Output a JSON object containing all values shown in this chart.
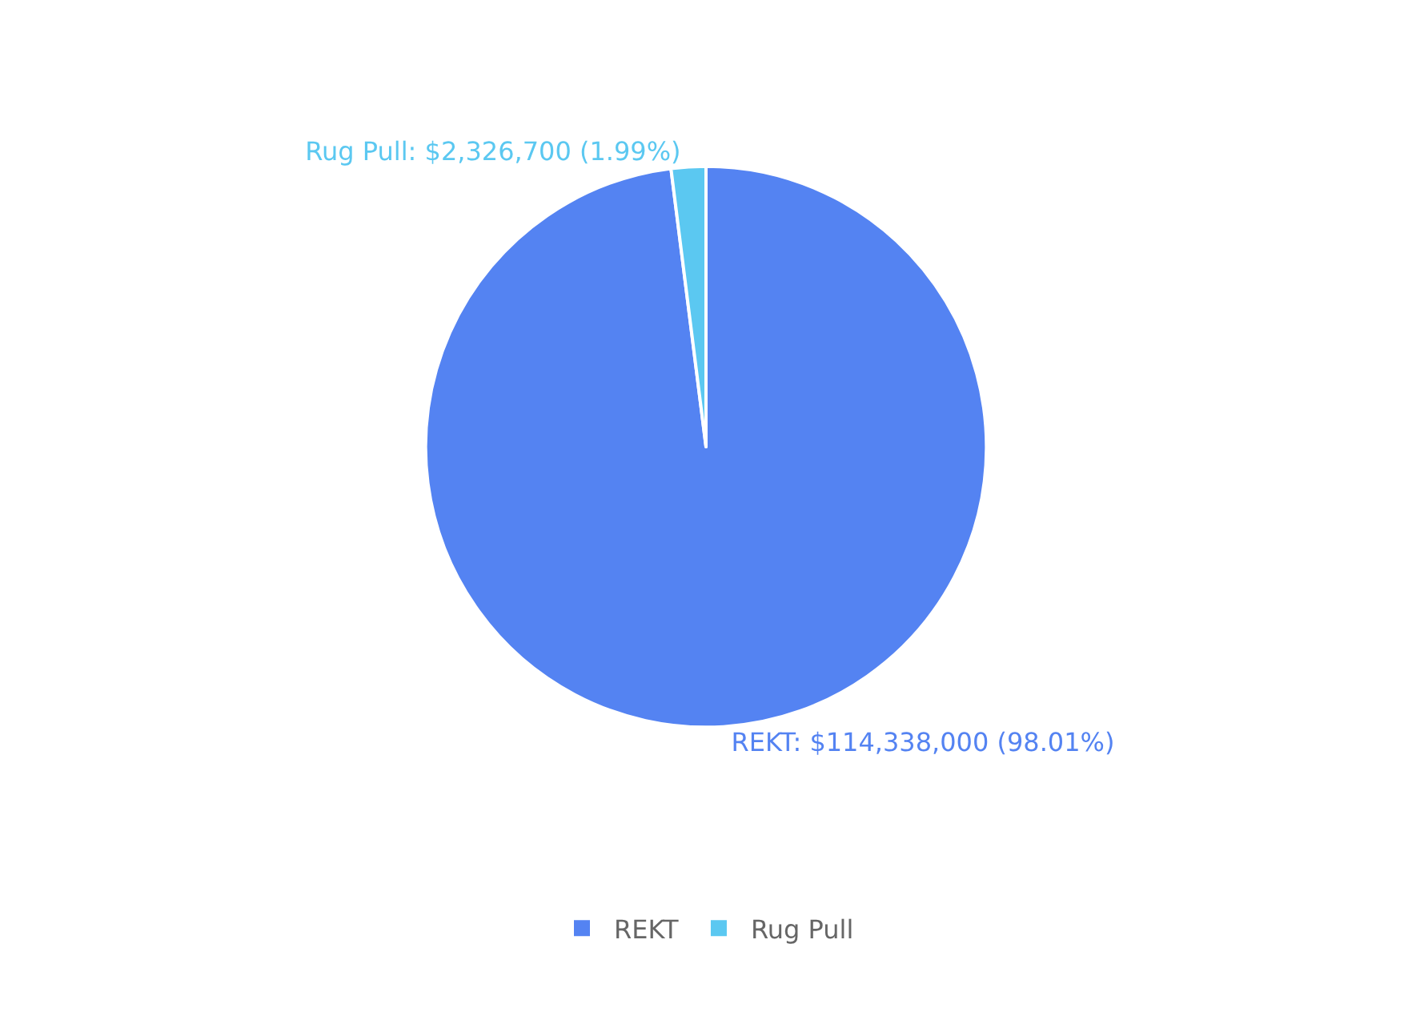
{
  "chart_data": {
    "type": "pie",
    "categories": [
      "REKT",
      "Rug Pull"
    ],
    "values": [
      114338000,
      2326700
    ],
    "colors": [
      "#5483f2",
      "#5bc8f1"
    ],
    "value_labels": [
      "REKT: $114,338,000 (98.01%)",
      "Rug Pull: $2,326,700 (1.99%)"
    ],
    "legend": "bottom"
  }
}
